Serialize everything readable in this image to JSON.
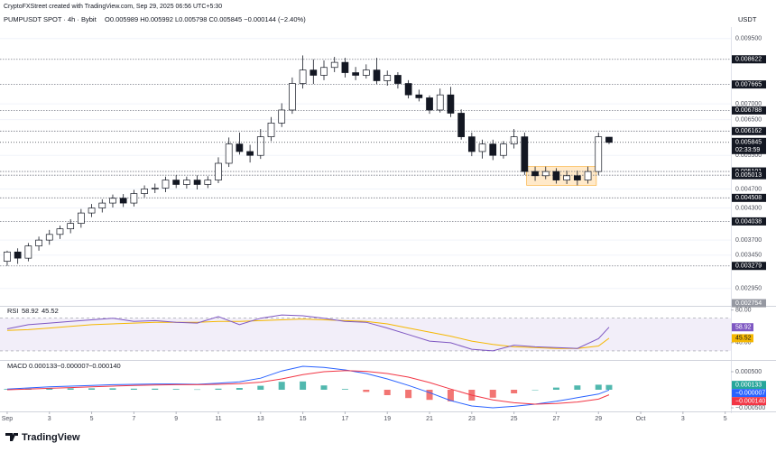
{
  "header": {
    "credit": "CryptoFXStreet created with TradingView.com, Sep 29, 2025 06:56 UTC+5:30",
    "symbol": "PUMPUSDT SPOT · 4h · Bybit",
    "ohlc": "O0.005989 H0.005992 L0.005798 C0.005845 −0.000144 (−2.40%)",
    "currency": "USDT"
  },
  "chart_data": {
    "type": "candlestick",
    "log_scale": true,
    "up_color": "#ffffff",
    "down_color": "#131722",
    "candles": [
      [
        0,
        0.00335,
        0.00352,
        0.00328,
        0.0035
      ],
      [
        0.5,
        0.0035,
        0.00356,
        0.00331,
        0.0034
      ],
      [
        1,
        0.0034,
        0.00365,
        0.00335,
        0.0036
      ],
      [
        1.5,
        0.0036,
        0.00376,
        0.00352,
        0.0037
      ],
      [
        2,
        0.0037,
        0.00388,
        0.00362,
        0.0038
      ],
      [
        2.5,
        0.0038,
        0.00396,
        0.00372,
        0.0039
      ],
      [
        3,
        0.0039,
        0.00408,
        0.00382,
        0.004
      ],
      [
        3.5,
        0.004,
        0.00428,
        0.00392,
        0.0042
      ],
      [
        4,
        0.0042,
        0.00438,
        0.00412,
        0.0043
      ],
      [
        4.5,
        0.0043,
        0.00448,
        0.00421,
        0.0044
      ],
      [
        5,
        0.0044,
        0.00458,
        0.00431,
        0.0045
      ],
      [
        5.5,
        0.0045,
        0.00459,
        0.00432,
        0.0044
      ],
      [
        6,
        0.0044,
        0.00468,
        0.00433,
        0.0046
      ],
      [
        6.5,
        0.0046,
        0.00478,
        0.00452,
        0.0047
      ],
      [
        7,
        0.0047,
        0.00482,
        0.00461,
        0.00472
      ],
      [
        7.5,
        0.00472,
        0.00498,
        0.00463,
        0.0049
      ],
      [
        8,
        0.0049,
        0.00502,
        0.00472,
        0.0048
      ],
      [
        8.5,
        0.0048,
        0.00498,
        0.00471,
        0.0049
      ],
      [
        9,
        0.0049,
        0.00501,
        0.00469,
        0.0048
      ],
      [
        9.5,
        0.0048,
        0.00499,
        0.00472,
        0.0049
      ],
      [
        10,
        0.0049,
        0.00545,
        0.00483,
        0.0053
      ],
      [
        10.5,
        0.0053,
        0.00598,
        0.00521,
        0.0058
      ],
      [
        11,
        0.0058,
        0.00612,
        0.00552,
        0.0056
      ],
      [
        11.5,
        0.0056,
        0.00578,
        0.00532,
        0.0055
      ],
      [
        12,
        0.0055,
        0.00622,
        0.00541,
        0.006
      ],
      [
        12.5,
        0.006,
        0.00658,
        0.00588,
        0.0064
      ],
      [
        13,
        0.0064,
        0.00702,
        0.00628,
        0.0068
      ],
      [
        13.5,
        0.0068,
        0.00792,
        0.00668,
        0.0077
      ],
      [
        14,
        0.0077,
        0.00878,
        0.00752,
        0.0082
      ],
      [
        14.5,
        0.0082,
        0.00862,
        0.00768,
        0.008
      ],
      [
        15,
        0.008,
        0.00858,
        0.00782,
        0.0083
      ],
      [
        15.5,
        0.0083,
        0.00872,
        0.00812,
        0.0085
      ],
      [
        16,
        0.0085,
        0.00868,
        0.00792,
        0.0081
      ],
      [
        16.5,
        0.0081,
        0.00832,
        0.00782,
        0.008
      ],
      [
        17,
        0.008,
        0.00842,
        0.00788,
        0.0082
      ],
      [
        17.5,
        0.0082,
        0.00868,
        0.00768,
        0.0078
      ],
      [
        18,
        0.0078,
        0.00818,
        0.00762,
        0.008
      ],
      [
        18.5,
        0.008,
        0.00812,
        0.00752,
        0.0077
      ],
      [
        19,
        0.0077,
        0.00782,
        0.00718,
        0.0073
      ],
      [
        19.5,
        0.0073,
        0.00748,
        0.00708,
        0.0072
      ],
      [
        20,
        0.0072,
        0.00728,
        0.00668,
        0.0068
      ],
      [
        20.5,
        0.0068,
        0.00752,
        0.00672,
        0.0073
      ],
      [
        21,
        0.0073,
        0.00758,
        0.00658,
        0.0067
      ],
      [
        21.5,
        0.0067,
        0.00682,
        0.00592,
        0.006
      ],
      [
        22,
        0.006,
        0.00612,
        0.00548,
        0.0056
      ],
      [
        22.5,
        0.0056,
        0.00592,
        0.00542,
        0.0058
      ],
      [
        23,
        0.0058,
        0.00592,
        0.00538,
        0.0055
      ],
      [
        23.5,
        0.0055,
        0.00588,
        0.00542,
        0.0058
      ],
      [
        24,
        0.0058,
        0.00622,
        0.00568,
        0.006
      ],
      [
        24.5,
        0.006,
        0.00612,
        0.00502,
        0.0051
      ],
      [
        25,
        0.0051,
        0.00522,
        0.00488,
        0.005
      ],
      [
        25.5,
        0.005,
        0.00522,
        0.00492,
        0.0051
      ],
      [
        26,
        0.0051,
        0.00518,
        0.00482,
        0.0049
      ],
      [
        26.5,
        0.0049,
        0.00512,
        0.00481,
        0.005
      ],
      [
        27,
        0.005,
        0.00512,
        0.00478,
        0.0049
      ],
      [
        27.5,
        0.0049,
        0.00522,
        0.00482,
        0.0051
      ],
      [
        28,
        0.0051,
        0.00612,
        0.00502,
        0.006
      ],
      [
        28.5,
        0.005989,
        0.005992,
        0.005798,
        0.005845
      ]
    ],
    "xlim": [
      -0.34,
      34.27
    ],
    "xticks": [
      {
        "value": 0,
        "label": "Sep"
      },
      {
        "value": 2,
        "label": "3"
      },
      {
        "value": 4,
        "label": "5"
      },
      {
        "value": 6,
        "label": "7"
      },
      {
        "value": 8,
        "label": "9"
      },
      {
        "value": 10,
        "label": "11"
      },
      {
        "value": 12,
        "label": "13"
      },
      {
        "value": 14,
        "label": "15"
      },
      {
        "value": 16,
        "label": "17"
      },
      {
        "value": 18,
        "label": "19"
      },
      {
        "value": 20,
        "label": "21"
      },
      {
        "value": 22,
        "label": "23"
      },
      {
        "value": 24,
        "label": "25"
      },
      {
        "value": 26,
        "label": "27"
      },
      {
        "value": 28,
        "label": "29"
      },
      {
        "value": 30,
        "label": "Oct"
      },
      {
        "value": 32,
        "label": "3"
      },
      {
        "value": 34,
        "label": "5"
      }
    ],
    "ylim": [
      0.00272,
      0.0099
    ],
    "yticks": [
      {
        "value": 0.0095,
        "label": "0.009500"
      },
      {
        "value": 0.007,
        "label": "0.007000"
      },
      {
        "value": 0.0065,
        "label": "0.006500"
      },
      {
        "value": 0.0055,
        "label": "0.005500"
      },
      {
        "value": 0.0047,
        "label": "0.004700"
      },
      {
        "value": 0.0043,
        "label": "0.004300"
      },
      {
        "value": 0.0037,
        "label": "0.003700"
      },
      {
        "value": 0.00345,
        "label": "0.003450"
      },
      {
        "value": 0.00295,
        "label": "0.002950"
      }
    ],
    "grid": true,
    "levels": [
      0.008622,
      0.007665,
      0.006788,
      0.006162,
      0.005101,
      0.005013,
      0.004508,
      0.004038,
      0.003279
    ],
    "last_price": 0.005845,
    "countdown": "02:33:59",
    "low_marker": 0.002754,
    "zone": {
      "t": [
        24.6,
        27.9
      ],
      "price": [
        0.00478,
        0.00522
      ]
    }
  },
  "rsi": {
    "type": "line",
    "label": "RSI",
    "t": [
      0,
      1,
      2,
      3,
      4,
      5,
      6,
      7,
      8,
      9,
      10,
      11,
      12,
      13,
      14,
      15,
      16,
      17,
      18,
      19,
      20,
      21,
      22,
      23,
      24,
      25,
      26,
      27,
      28,
      28.5
    ],
    "series": [
      {
        "color": "#7e57c2",
        "values": [
          57,
          62,
          64,
          66,
          68,
          70,
          66,
          67,
          65,
          64,
          72,
          62,
          70,
          74,
          73,
          70,
          66,
          65,
          58,
          50,
          42,
          40,
          32,
          30,
          37,
          35,
          34,
          33,
          45,
          58.92
        ]
      },
      {
        "color": "#f5b700",
        "values": [
          55,
          56,
          58,
          60,
          62,
          63,
          64,
          65,
          65,
          65,
          66,
          66,
          67,
          68,
          69,
          68,
          67,
          66,
          63,
          58,
          53,
          48,
          42,
          38,
          35,
          34,
          33,
          33,
          36,
          45.52
        ]
      }
    ],
    "band": [
      30,
      70
    ],
    "ylim": [
      20,
      84
    ],
    "yticks": [
      {
        "value": 80,
        "label": "80.00"
      },
      {
        "value": 40,
        "label": "40.00"
      }
    ]
  },
  "macd": {
    "type": "line",
    "label": "MACD",
    "t": [
      0,
      1,
      2,
      3,
      4,
      5,
      6,
      7,
      8,
      9,
      10,
      11,
      12,
      13,
      14,
      15,
      16,
      17,
      18,
      19,
      20,
      21,
      22,
      23,
      24,
      25,
      26,
      27,
      28,
      28.5
    ],
    "series": [
      {
        "color": "#26a69a",
        "negative_color": "#ef5350",
        "values": [
          2e-05,
          3e-05,
          4e-05,
          4e-05,
          4e-05,
          4e-05,
          3e-05,
          3e-05,
          2e-05,
          1e-05,
          3e-05,
          5e-05,
          0.00011,
          0.00022,
          0.00023,
          0.00012,
          2e-05,
          -6e-05,
          -0.00015,
          -0.00023,
          -0.00028,
          -0.00032,
          -0.0003,
          -0.00022,
          -0.0001,
          0,
          6e-05,
          0.00012,
          0.00014,
          0.000133
        ]
      },
      {
        "color": "#2962ff",
        "values": [
          2e-05,
          5e-05,
          8e-05,
          0.0001,
          0.00012,
          0.00014,
          0.00015,
          0.00016,
          0.00016,
          0.00015,
          0.00018,
          0.00022,
          0.00032,
          0.00052,
          0.00065,
          0.00062,
          0.00055,
          0.00045,
          0.0003,
          0.00012,
          -8e-05,
          -0.0003,
          -0.00045,
          -0.0005,
          -0.00046,
          -0.0004,
          -0.00032,
          -0.00022,
          -0.00012,
          -7e-06
        ]
      },
      {
        "color": "#f23645",
        "values": [
          0,
          2e-05,
          4e-05,
          6e-05,
          8e-05,
          0.0001,
          0.00012,
          0.00013,
          0.00014,
          0.00014,
          0.00015,
          0.00017,
          0.00021,
          0.0003,
          0.00042,
          0.0005,
          0.00053,
          0.00051,
          0.00045,
          0.00035,
          0.0002,
          2e-05,
          -0.00015,
          -0.00028,
          -0.00036,
          -0.0004,
          -0.00038,
          -0.00034,
          -0.00026,
          -0.00014
        ]
      }
    ],
    "legend": [
      {
        "value": -7e-06,
        "label": "−0.000007"
      },
      {
        "value": -0.00014,
        "label": "−0.000140"
      }
    ],
    "ylim": [
      -0.0006,
      0.0008
    ],
    "yticks": [
      {
        "value": 0.0005,
        "label": "0.000500"
      },
      {
        "value": -0.0005,
        "label": "−0.000500"
      }
    ]
  },
  "footer": {
    "brand": "TradingView"
  }
}
